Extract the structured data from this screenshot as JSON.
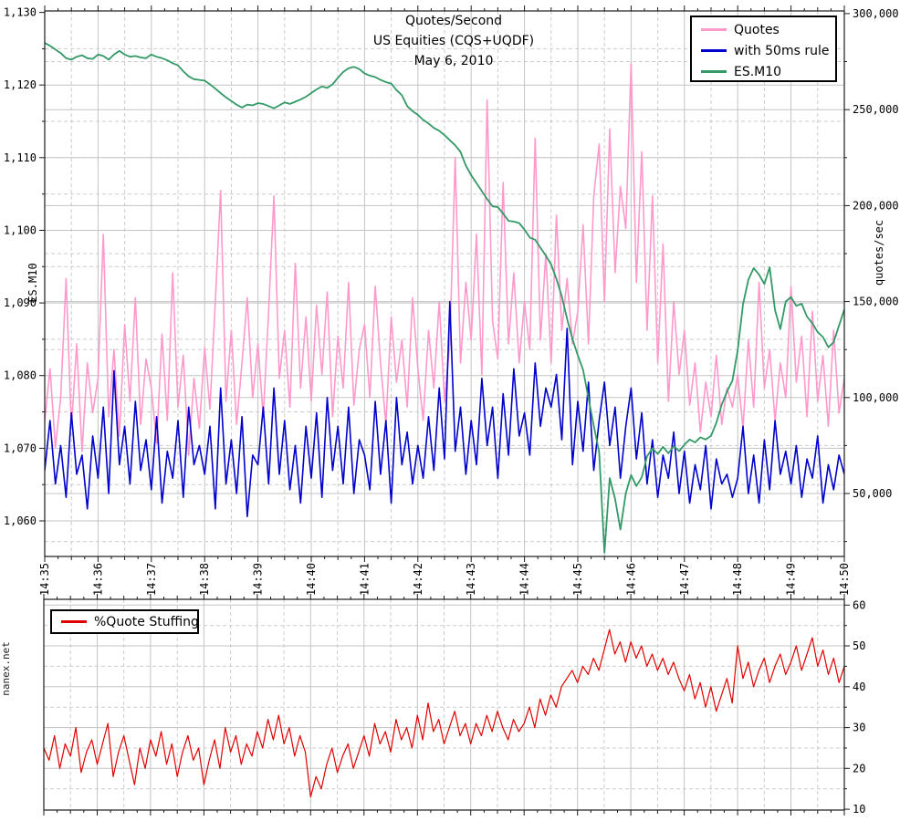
{
  "page": {
    "background": "#ffffff",
    "watermark": "nanex.net"
  },
  "colors": {
    "quotes_pink": "#FF99CC",
    "rule_blue": "#0000CC",
    "es_green": "#339966",
    "stuffing_red": "#E00000",
    "grid_major": "#c3c3c3",
    "grid_minor": "#cbcbcb",
    "frame": "#1a1a1a"
  },
  "chart_data": [
    {
      "id": "top",
      "type": "line",
      "title_lines": [
        "Quotes/Second",
        "US Equities (CQS+UQDF)",
        "May 6, 2010"
      ],
      "grid": "major solid, minor dashed, both axes",
      "legend_position": "top-right",
      "x_axis": {
        "minutes": 15,
        "labels": [
          "14:35",
          "14:36",
          "14:37",
          "14:38",
          "14:39",
          "14:40",
          "14:41",
          "14:42",
          "14:43",
          "14:44",
          "14:45",
          "14:46",
          "14:47",
          "14:48",
          "14:49",
          "14:50"
        ]
      },
      "axes": [
        {
          "side": "left",
          "title": "ES.M10",
          "min": 1055.1,
          "max": 1130.2,
          "majors": [
            1060,
            1070,
            1080,
            1090,
            1100,
            1110,
            1120,
            1130
          ],
          "labels": [
            "1,060",
            "1,070",
            "1,080",
            "1,090",
            "1,100",
            "1,110",
            "1,120",
            "1,130"
          ],
          "minors": [
            1065,
            1075,
            1085,
            1095,
            1105,
            1115,
            1125
          ]
        },
        {
          "side": "right",
          "title": "quotes/sec",
          "min": 17200,
          "max": 301400,
          "majors": [
            50000,
            100000,
            150000,
            200000,
            250000,
            300000
          ],
          "labels": [
            "50,000",
            "100,000",
            "150,000",
            "200,000",
            "250,000",
            "300,000"
          ],
          "minors": [
            25000,
            75000,
            125000,
            175000,
            225000,
            275000
          ]
        }
      ],
      "legend_entries": [
        {
          "label": "Quotes",
          "color": "#FF99CC"
        },
        {
          "label": "with 50ms rule",
          "color": "#0000CC"
        },
        {
          "label": "ES.M10",
          "color": "#339966"
        }
      ],
      "series": [
        {
          "name": "Quotes",
          "color": "#FF99CC",
          "axis": "right",
          "scale": 1000,
          "t_step": 0.1,
          "width": 1.6,
          "values": [
            88,
            115,
            74,
            100,
            162,
            84,
            128,
            72,
            118,
            92,
            110,
            185,
            90,
            125,
            80,
            138,
            98,
            152,
            86,
            120,
            105,
            76,
            133,
            88,
            165,
            95,
            122,
            70,
            110,
            84,
            126,
            94,
            150,
            208,
            98,
            135,
            86,
            118,
            152,
            100,
            128,
            90,
            145,
            205,
            110,
            135,
            95,
            170,
            105,
            142,
            98,
            148,
            112,
            155,
            90,
            132,
            105,
            160,
            96,
            125,
            138,
            100,
            158,
            118,
            86,
            142,
            108,
            130,
            95,
            152,
            115,
            88,
            135,
            105,
            150,
            98,
            128,
            225,
            118,
            160,
            130,
            185,
            112,
            255,
            140,
            120,
            212,
            128,
            165,
            118,
            150,
            125,
            235,
            130,
            175,
            118,
            195,
            135,
            162,
            128,
            145,
            190,
            128,
            205,
            232,
            150,
            240,
            165,
            210,
            188,
            274,
            160,
            228,
            135,
            205,
            118,
            180,
            98,
            150,
            112,
            135,
            96,
            118,
            82,
            108,
            90,
            122,
            86,
            105,
            95,
            112,
            84,
            130,
            95,
            160,
            105,
            125,
            88,
            118,
            100,
            158,
            108,
            132,
            90,
            145,
            98,
            122,
            85,
            135,
            92,
            110
          ]
        },
        {
          "name": "with 50ms rule",
          "color": "#0000CC",
          "axis": "right",
          "scale": 1000,
          "t_step": 0.1,
          "width": 1.6,
          "values": [
            62,
            88,
            55,
            75,
            48,
            92,
            60,
            70,
            42,
            80,
            58,
            95,
            50,
            114,
            65,
            85,
            55,
            98,
            62,
            78,
            52,
            90,
            45,
            72,
            58,
            88,
            48,
            95,
            65,
            75,
            60,
            85,
            42,
            105,
            55,
            78,
            50,
            90,
            38,
            70,
            65,
            95,
            55,
            105,
            60,
            88,
            52,
            75,
            45,
            85,
            58,
            92,
            48,
            100,
            62,
            85,
            55,
            95,
            50,
            78,
            70,
            52,
            98,
            60,
            88,
            45,
            100,
            65,
            82,
            55,
            75,
            58,
            90,
            62,
            105,
            68,
            150,
            72,
            95,
            60,
            88,
            65,
            110,
            75,
            95,
            58,
            102,
            70,
            115,
            80,
            92,
            70,
            118,
            85,
            105,
            95,
            112,
            78,
            136,
            65,
            98,
            72,
            108,
            62,
            88,
            108,
            75,
            95,
            58,
            85,
            105,
            68,
            92,
            55,
            78,
            48,
            70,
            58,
            82,
            50,
            72,
            45,
            65,
            52,
            75,
            42,
            68,
            55,
            60,
            48,
            58,
            85,
            50,
            70,
            45,
            78,
            52,
            88,
            60,
            72,
            55,
            75,
            48,
            68,
            58,
            80,
            45,
            65,
            52,
            70,
            60
          ]
        },
        {
          "name": "ES.M10",
          "color": "#339966",
          "axis": "left",
          "scale": 1,
          "t_step": 0.1,
          "width": 1.8,
          "values": [
            1125.8,
            1125.4,
            1124.9,
            1124.4,
            1123.7,
            1123.5,
            1123.9,
            1124.1,
            1123.7,
            1123.6,
            1124.2,
            1124.0,
            1123.5,
            1124.2,
            1124.7,
            1124.2,
            1123.9,
            1124.0,
            1123.8,
            1123.7,
            1124.2,
            1123.9,
            1123.7,
            1123.4,
            1123.0,
            1122.7,
            1121.9,
            1121.2,
            1120.8,
            1120.7,
            1120.6,
            1120.1,
            1119.5,
            1118.9,
            1118.3,
            1117.8,
            1117.3,
            1116.9,
            1117.3,
            1117.2,
            1117.5,
            1117.4,
            1117.1,
            1116.8,
            1117.2,
            1117.6,
            1117.4,
            1117.7,
            1118.0,
            1118.4,
            1118.9,
            1119.4,
            1119.8,
            1119.6,
            1120.1,
            1121.0,
            1121.8,
            1122.3,
            1122.5,
            1122.2,
            1121.6,
            1121.3,
            1121.1,
            1120.7,
            1120.4,
            1120.2,
            1119.3,
            1118.6,
            1117.1,
            1116.4,
            1115.9,
            1115.2,
            1114.7,
            1114.1,
            1113.7,
            1113.1,
            1112.4,
            1111.7,
            1110.8,
            1108.9,
            1107.6,
            1106.5,
            1105.4,
            1104.3,
            1103.3,
            1103.2,
            1102.3,
            1101.3,
            1101.2,
            1101.0,
            1100.1,
            1099.0,
            1098.7,
            1097.6,
            1096.5,
            1095.3,
            1093.3,
            1090.9,
            1087.8,
            1085.0,
            1082.8,
            1080.8,
            1076.9,
            1073.1,
            1069.5,
            1055.6,
            1065.9,
            1063.0,
            1058.8,
            1063.8,
            1066.3,
            1064.8,
            1066.0,
            1068.9,
            1070.0,
            1069.2,
            1070.2,
            1069.3,
            1070.3,
            1069.6,
            1070.5,
            1071.2,
            1070.8,
            1071.5,
            1071.2,
            1071.7,
            1073.5,
            1076.0,
            1077.8,
            1079.3,
            1083.5,
            1089.8,
            1093.2,
            1094.8,
            1093.9,
            1092.6,
            1094.9,
            1089.0,
            1086.4,
            1090.2,
            1090.8,
            1089.6,
            1089.9,
            1088.1,
            1087.2,
            1086.0,
            1085.3,
            1083.9,
            1084.6,
            1086.9,
            1089.1
          ]
        }
      ]
    },
    {
      "id": "bottom",
      "type": "line",
      "watermark": "nanex.net",
      "x_axis": {
        "minutes": 15,
        "labels": []
      },
      "axes": [
        {
          "side": "right",
          "title": "",
          "min": 9.8,
          "max": 61.4,
          "majors": [
            10,
            20,
            30,
            40,
            50,
            60
          ],
          "labels": [
            "10",
            "20",
            "30",
            "40",
            "50",
            "60"
          ],
          "minors": [
            15,
            25,
            35,
            45,
            55
          ]
        }
      ],
      "legend_entries": [
        {
          "label": "%Quote Stuffing",
          "color": "#E00000"
        }
      ],
      "series": [
        {
          "name": "%Quote Stuffing",
          "color": "#E00000",
          "axis": "right",
          "scale": 1,
          "t_step": 0.1,
          "width": 1.2,
          "values": [
            25,
            22,
            28,
            20,
            26,
            23,
            30,
            19,
            24,
            27,
            21,
            26,
            31,
            18,
            24,
            28,
            22,
            16,
            25,
            20,
            27,
            23,
            29,
            21,
            26,
            18,
            24,
            28,
            22,
            25,
            16,
            22,
            27,
            20,
            30,
            24,
            28,
            21,
            26,
            23,
            29,
            25,
            32,
            27,
            33,
            26,
            30,
            23,
            28,
            24,
            13,
            18,
            15,
            21,
            25,
            19,
            23,
            26,
            20,
            24,
            28,
            23,
            31,
            26,
            29,
            24,
            32,
            27,
            30,
            25,
            33,
            27,
            36,
            29,
            32,
            26,
            30,
            34,
            28,
            31,
            26,
            31,
            28,
            33,
            29,
            34,
            30,
            27,
            32,
            29,
            31,
            35,
            30,
            37,
            33,
            38,
            35,
            40,
            42,
            44,
            41,
            45,
            43,
            47,
            44,
            49,
            54,
            48,
            51,
            46,
            51,
            47,
            50,
            45,
            48,
            44,
            47,
            43,
            46,
            42,
            39,
            43,
            37,
            41,
            35,
            40,
            34,
            38,
            42,
            36,
            50,
            42,
            46,
            40,
            44,
            47,
            41,
            45,
            48,
            43,
            46,
            50,
            44,
            48,
            52,
            45,
            49,
            43,
            47,
            41,
            45
          ]
        }
      ]
    }
  ]
}
